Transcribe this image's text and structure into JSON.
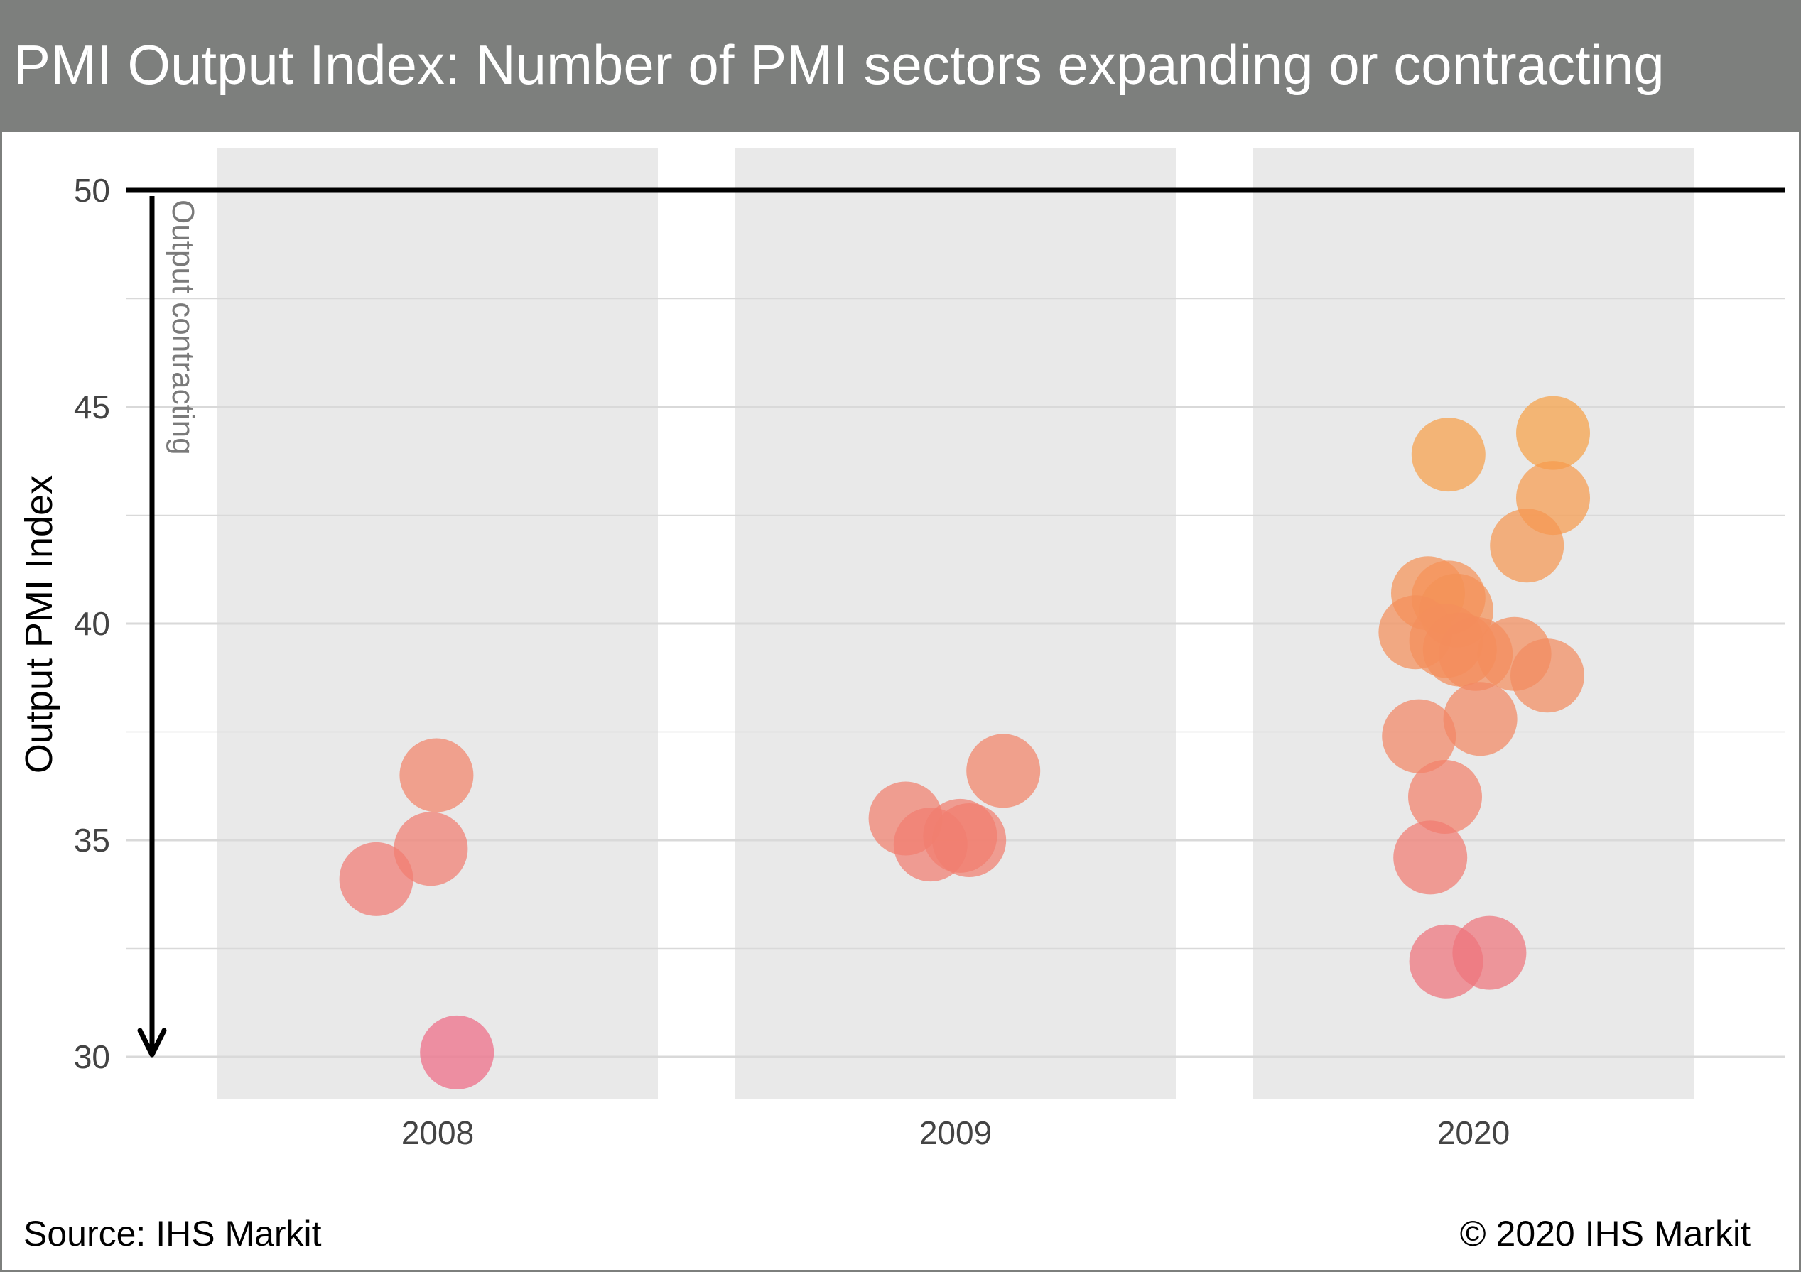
{
  "title": "PMI Output Index: Number of PMI sectors expanding or contracting",
  "footer": {
    "source": "Source: IHS Markit",
    "copyright": "© 2020 IHS Markit"
  },
  "colors": {
    "title_bar": "#7d7f7d",
    "panel_background": "#e9e9e9",
    "gridline": "#d9d9d9",
    "reference_line": "#000000",
    "low_value_color": "#ee6b85",
    "high_value_color": "#f7a146"
  },
  "chart_data": {
    "type": "scatter",
    "ylabel": "Output PMI Index",
    "xlabel": "",
    "ylim": [
      29,
      51
    ],
    "yticks": [
      30,
      35,
      40,
      45,
      50
    ],
    "categories": [
      "2008",
      "2009",
      "2020"
    ],
    "reference_line": {
      "y": 50
    },
    "annotation": {
      "text": "Output contracting",
      "arrow": "down"
    },
    "grid": true,
    "legend": "none",
    "series": [
      {
        "category": "2008",
        "points": [
          34.1,
          34.8,
          36.5,
          30.1
        ],
        "offsets": [
          -0.54,
          -0.06,
          -0.01,
          0.17
        ]
      },
      {
        "category": "2009",
        "points": [
          35.5,
          34.9,
          35.1,
          35.0,
          36.6
        ],
        "offsets": [
          -0.44,
          -0.22,
          0.04,
          0.12,
          0.42
        ]
      },
      {
        "category": "2020",
        "points": [
          43.9,
          44.4,
          42.9,
          41.8,
          40.7,
          40.6,
          40.3,
          39.8,
          39.6,
          39.4,
          39.3,
          39.3,
          38.8,
          37.8,
          37.4,
          36.0,
          34.6,
          32.2,
          32.4
        ],
        "offsets": [
          -0.22,
          0.7,
          0.7,
          0.47,
          -0.4,
          -0.22,
          -0.15,
          -0.51,
          -0.24,
          -0.12,
          0.36,
          0.02,
          0.65,
          0.06,
          -0.48,
          -0.25,
          -0.38,
          -0.24,
          0.14
        ]
      }
    ]
  }
}
